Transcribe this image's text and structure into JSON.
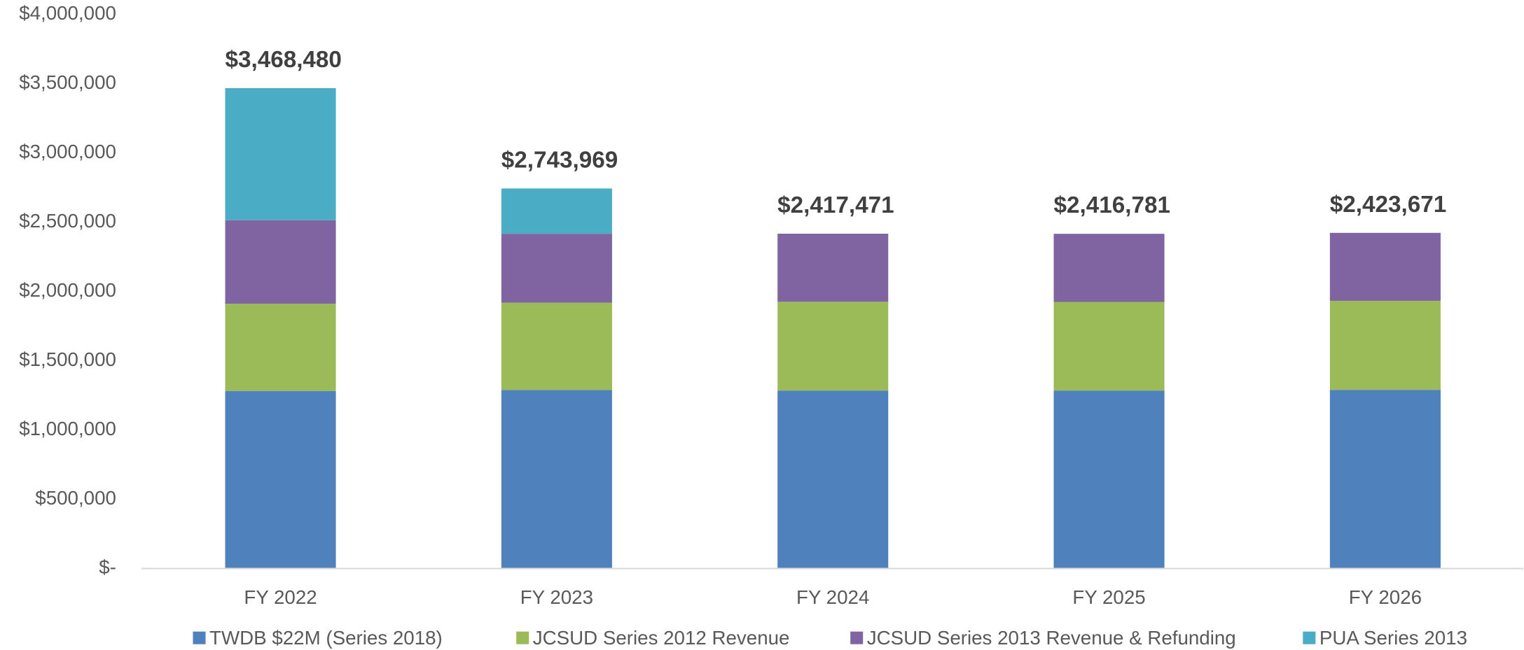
{
  "chart_data": {
    "type": "stacked_bar",
    "categories": [
      "FY 2022",
      "FY 2023",
      "FY 2024",
      "FY 2025",
      "FY 2026"
    ],
    "series": [
      {
        "name": "TWDB $22M (Series 2018)",
        "color": "#4f81bd",
        "values": [
          1282000,
          1289000,
          1285000,
          1285000,
          1290000
        ]
      },
      {
        "name": "JCSUD Series 2012 Revenue",
        "color": "#9bbb59",
        "values": [
          630000,
          630000,
          641000,
          640000,
          643000
        ]
      },
      {
        "name": "JCSUD Series 2013 Revenue & Refunding",
        "color": "#8064a2",
        "values": [
          603000,
          498000,
          491471,
          491781,
          490671
        ]
      },
      {
        "name": "PUA Series 2013",
        "color": "#4bacc6",
        "values": [
          953480,
          326969,
          0,
          0,
          0
        ]
      }
    ],
    "totals": [
      3468480,
      2743969,
      2417471,
      2416781,
      2423671
    ],
    "total_labels": [
      "$3,468,480",
      "$2,743,969",
      "$2,417,471",
      "$2,416,781",
      "$2,423,671"
    ],
    "ylim": [
      0,
      4000000
    ],
    "yticks": [
      {
        "value": 0,
        "label": "$-"
      },
      {
        "value": 500000,
        "label": "$500,000"
      },
      {
        "value": 1000000,
        "label": "$1,000,000"
      },
      {
        "value": 1500000,
        "label": "$1,500,000"
      },
      {
        "value": 2000000,
        "label": "$2,000,000"
      },
      {
        "value": 2500000,
        "label": "$2,500,000"
      },
      {
        "value": 3000000,
        "label": "$3,000,000"
      },
      {
        "value": 3500000,
        "label": "$3,500,000"
      },
      {
        "value": 4000000,
        "label": "$4,000,000"
      }
    ],
    "legend": "bottom"
  }
}
